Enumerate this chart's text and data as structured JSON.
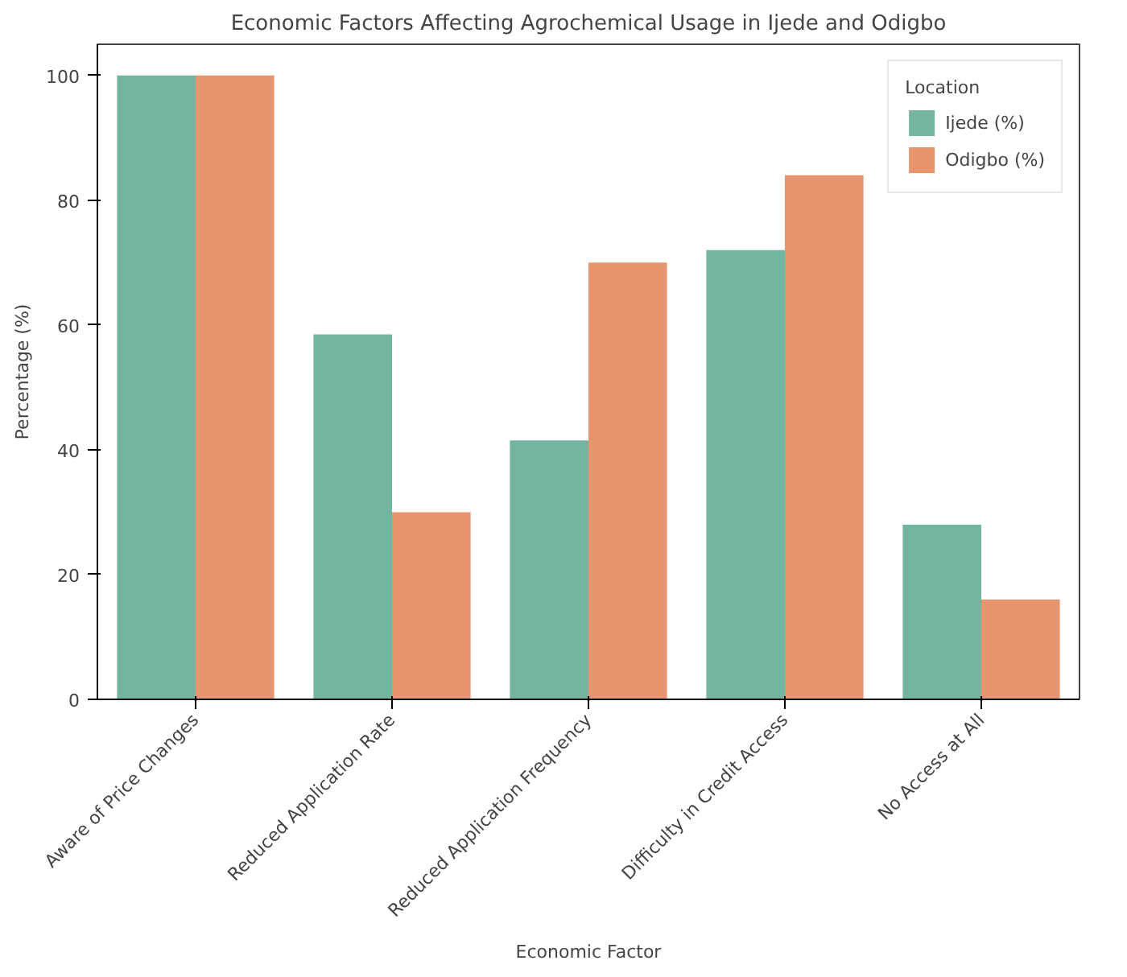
{
  "chart_data": {
    "type": "bar",
    "title": "Economic Factors Affecting Agrochemical Usage in Ijede and Odigbo",
    "xlabel": "Economic Factor",
    "ylabel": "Percentage (%)",
    "legend_title": "Location",
    "categories": [
      "Aware of Price Changes",
      "Reduced Application Rate",
      "Reduced Application Frequency",
      "Difficulty in Credit Access",
      "No Access at All"
    ],
    "series": [
      {
        "name": "Ijede (%)",
        "color": "#73b5a0",
        "values": [
          100,
          58.5,
          41.5,
          72,
          28
        ]
      },
      {
        "name": "Odigbo (%)",
        "color": "#e8956f",
        "values": [
          100,
          30,
          70,
          84,
          16
        ]
      }
    ],
    "ylim": [
      0,
      105
    ],
    "yticks": [
      0,
      20,
      40,
      60,
      80,
      100
    ],
    "grid": false,
    "legend": "top right"
  }
}
